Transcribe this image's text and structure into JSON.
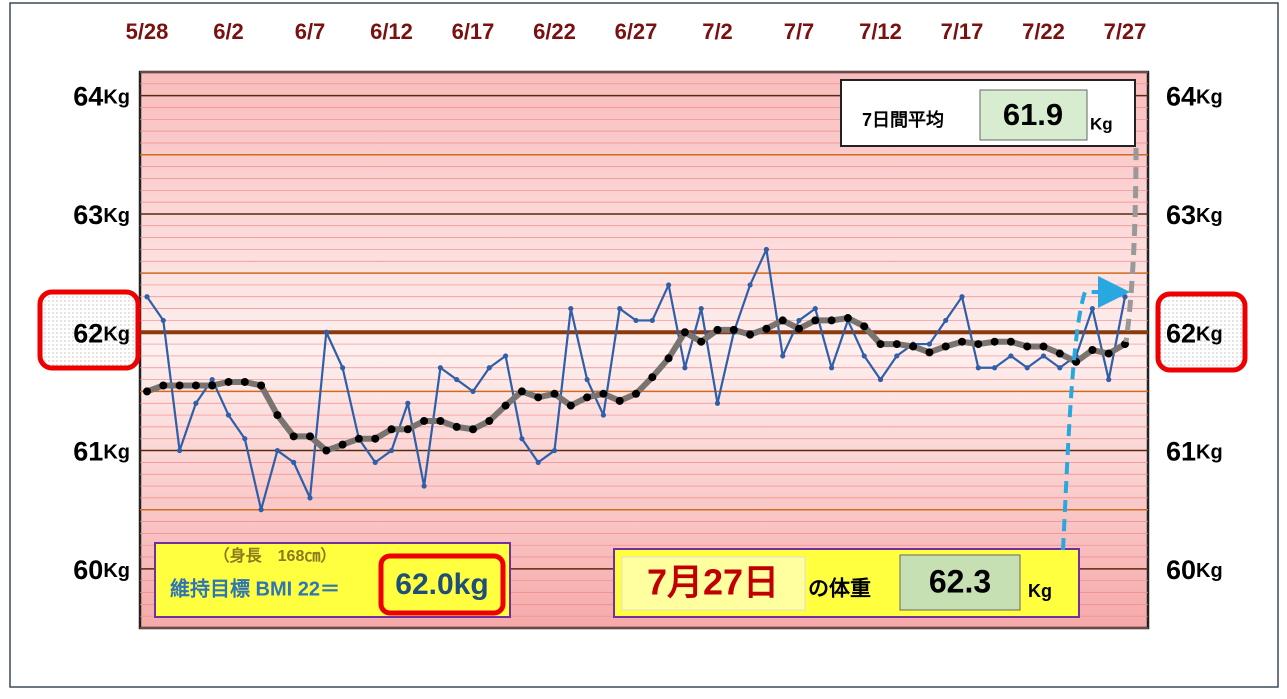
{
  "chart_data": {
    "type": "line",
    "categories": [
      "5/28",
      null,
      null,
      null,
      null,
      "6/2",
      null,
      null,
      null,
      null,
      "6/7",
      null,
      null,
      null,
      null,
      "6/12",
      null,
      null,
      null,
      null,
      "6/17",
      null,
      null,
      null,
      null,
      "6/22",
      null,
      null,
      null,
      null,
      "6/27",
      null,
      null,
      null,
      null,
      "7/2",
      null,
      null,
      null,
      null,
      "7/7",
      null,
      null,
      null,
      null,
      "7/12",
      null,
      null,
      null,
      null,
      "7/17",
      null,
      null,
      null,
      null,
      "7/22",
      null,
      null,
      null,
      null,
      "7/27"
    ],
    "series": [
      {
        "color": "#2e5fa8",
        "values": [
          62.3,
          62.1,
          61.0,
          61.4,
          61.6,
          61.3,
          61.1,
          60.5,
          61.0,
          60.9,
          60.6,
          62.0,
          61.7,
          61.1,
          60.9,
          61.0,
          61.4,
          60.7,
          61.7,
          61.6,
          61.5,
          61.7,
          61.8,
          61.1,
          60.9,
          61.0,
          62.2,
          61.6,
          61.3,
          62.2,
          62.1,
          62.1,
          62.4,
          61.7,
          62.2,
          61.4,
          62.0,
          62.4,
          62.7,
          61.8,
          62.1,
          62.2,
          61.7,
          62.1,
          61.8,
          61.6,
          61.8,
          61.9,
          61.9,
          62.1,
          62.3,
          61.7,
          61.7,
          61.8,
          61.7,
          61.8,
          61.7,
          61.8,
          62.2,
          61.6,
          62.3
        ]
      },
      {
        "color": "#7a7470",
        "values": [
          61.5,
          61.55,
          61.55,
          61.55,
          61.55,
          61.58,
          61.58,
          61.55,
          61.3,
          61.12,
          61.12,
          61.0,
          61.05,
          61.1,
          61.1,
          61.18,
          61.18,
          61.25,
          61.25,
          61.2,
          61.18,
          61.25,
          61.38,
          61.5,
          61.45,
          61.48,
          61.38,
          61.45,
          61.48,
          61.42,
          61.48,
          61.62,
          61.78,
          62.0,
          61.92,
          62.02,
          62.02,
          61.98,
          62.03,
          62.1,
          62.03,
          62.1,
          62.1,
          62.12,
          62.05,
          61.9,
          61.9,
          61.88,
          61.83,
          61.88,
          61.92,
          61.9,
          61.92,
          61.92,
          61.88,
          61.88,
          61.82,
          61.75,
          61.85,
          61.82,
          61.9
        ]
      }
    ],
    "ylim": [
      59.5,
      64.2
    ],
    "yticks": [
      60,
      61,
      62,
      63,
      64
    ],
    "y_unit": "Kg",
    "grid": true,
    "minor_grid_step": 0.1,
    "annotations": {
      "average": {
        "label": "7日間平均",
        "value": "61.9",
        "unit": "Kg"
      },
      "target": {
        "note": "（身長　168㎝）",
        "label": "維持目標 BMI 22＝",
        "value_label": "62.0kg",
        "value": 62
      },
      "today": {
        "date": "7月27日",
        "label": "の体重",
        "value": "62.3",
        "unit": "Kg"
      }
    }
  }
}
